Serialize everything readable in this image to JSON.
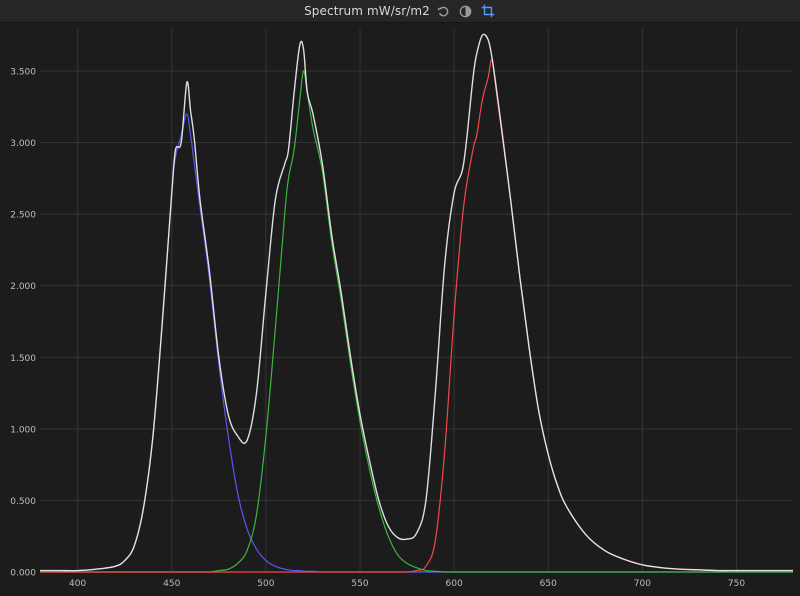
{
  "window": {
    "title": "Spectrum mW/sr/m2",
    "icons": [
      "reset-icon",
      "contrast-icon",
      "crop-icon"
    ]
  },
  "colors": {
    "background": "#1c1c1c",
    "grid": "#343434",
    "tick_text": "#bdbdbd",
    "blue": "#5a5cff",
    "green": "#3fbf3f",
    "red": "#ff4a4a",
    "total": "#e9e9e9",
    "accent": "#4a9eff"
  },
  "chart_data": {
    "type": "line",
    "title": "Spectrum mW/sr/m2",
    "xlabel": "",
    "ylabel": "",
    "xlim": [
      380,
      780
    ],
    "ylim": [
      0,
      3.8
    ],
    "grid": true,
    "x_ticks": [
      400,
      450,
      500,
      550,
      600,
      650,
      700,
      750
    ],
    "x_tick_labels": [
      "400",
      "450",
      "500",
      "550",
      "600",
      "650",
      "700",
      "750"
    ],
    "y_ticks": [
      0,
      0.5,
      1.0,
      1.5,
      2.0,
      2.5,
      3.0,
      3.5
    ],
    "y_tick_labels": [
      "0.000",
      "0.500",
      "1.000",
      "1.500",
      "2.000",
      "2.500",
      "3.000",
      "3.500"
    ],
    "x": [
      380,
      390,
      400,
      410,
      420,
      425,
      430,
      435,
      440,
      445,
      450,
      452,
      455,
      458,
      460,
      462,
      465,
      470,
      475,
      480,
      485,
      490,
      495,
      500,
      505,
      510,
      512,
      515,
      518,
      520,
      522,
      525,
      530,
      535,
      540,
      545,
      550,
      555,
      560,
      565,
      570,
      575,
      580,
      585,
      590,
      595,
      600,
      605,
      610,
      612,
      615,
      618,
      620,
      622,
      625,
      630,
      635,
      640,
      645,
      650,
      655,
      660,
      670,
      680,
      690,
      700,
      710,
      720,
      730,
      740,
      750,
      760,
      770,
      780
    ],
    "series": [
      {
        "color": "blue",
        "values": [
          0.01,
          0.01,
          0.01,
          0.02,
          0.04,
          0.08,
          0.18,
          0.45,
          0.95,
          1.75,
          2.65,
          2.9,
          3.05,
          3.2,
          3.05,
          2.85,
          2.55,
          2.05,
          1.45,
          0.95,
          0.55,
          0.3,
          0.16,
          0.08,
          0.04,
          0.02,
          0.015,
          0.01,
          0.01,
          0.005,
          0.005,
          0.005,
          0,
          0,
          0,
          0,
          0,
          0,
          0,
          0,
          0,
          0,
          0,
          0,
          0,
          0,
          0,
          0,
          0,
          0,
          0,
          0,
          0,
          0,
          0,
          0,
          0,
          0,
          0,
          0,
          0,
          0,
          0,
          0,
          0,
          0,
          0,
          0,
          0,
          0,
          0,
          0,
          0,
          0
        ]
      },
      {
        "color": "green",
        "values": [
          0,
          0,
          0,
          0,
          0,
          0,
          0,
          0,
          0,
          0,
          0,
          0,
          0,
          0,
          0,
          0,
          0,
          0,
          0.01,
          0.02,
          0.06,
          0.15,
          0.4,
          0.95,
          1.7,
          2.5,
          2.75,
          2.95,
          3.3,
          3.5,
          3.35,
          3.1,
          2.8,
          2.3,
          1.9,
          1.45,
          1.05,
          0.72,
          0.45,
          0.25,
          0.12,
          0.06,
          0.03,
          0.01,
          0.005,
          0,
          0,
          0,
          0,
          0,
          0,
          0,
          0,
          0,
          0,
          0,
          0,
          0,
          0,
          0,
          0,
          0,
          0,
          0,
          0,
          0,
          0,
          0,
          0,
          0,
          0,
          0,
          0,
          0
        ]
      },
      {
        "color": "red",
        "values": [
          0,
          0,
          0,
          0,
          0,
          0,
          0,
          0,
          0,
          0,
          0,
          0,
          0,
          0,
          0,
          0,
          0,
          0,
          0,
          0,
          0,
          0,
          0,
          0,
          0,
          0,
          0,
          0,
          0,
          0,
          0,
          0,
          0,
          0,
          0,
          0,
          0,
          0,
          0,
          0,
          0,
          0,
          0.01,
          0.04,
          0.22,
          0.85,
          1.8,
          2.55,
          2.95,
          3.05,
          3.3,
          3.45,
          3.58,
          3.4,
          3.1,
          2.6,
          2.05,
          1.55,
          1.12,
          0.82,
          0.6,
          0.45,
          0.26,
          0.15,
          0.09,
          0.05,
          0.03,
          0.02,
          0.015,
          0.01,
          0.01,
          0.01,
          0.01,
          0.01
        ]
      },
      {
        "color": "total",
        "values": [
          0.01,
          0.01,
          0.01,
          0.02,
          0.04,
          0.08,
          0.18,
          0.45,
          0.95,
          1.75,
          2.65,
          2.95,
          3.0,
          3.42,
          3.22,
          3.02,
          2.6,
          2.1,
          1.5,
          1.1,
          0.95,
          0.92,
          1.25,
          1.95,
          2.6,
          2.85,
          2.95,
          3.35,
          3.68,
          3.65,
          3.35,
          3.2,
          2.85,
          2.35,
          1.95,
          1.5,
          1.1,
          0.78,
          0.5,
          0.32,
          0.24,
          0.23,
          0.27,
          0.5,
          1.25,
          2.15,
          2.65,
          2.85,
          3.45,
          3.62,
          3.75,
          3.72,
          3.6,
          3.42,
          3.12,
          2.6,
          2.05,
          1.55,
          1.12,
          0.82,
          0.6,
          0.45,
          0.26,
          0.15,
          0.09,
          0.05,
          0.03,
          0.02,
          0.015,
          0.01,
          0.01,
          0.01,
          0.01,
          0.01
        ]
      }
    ]
  }
}
